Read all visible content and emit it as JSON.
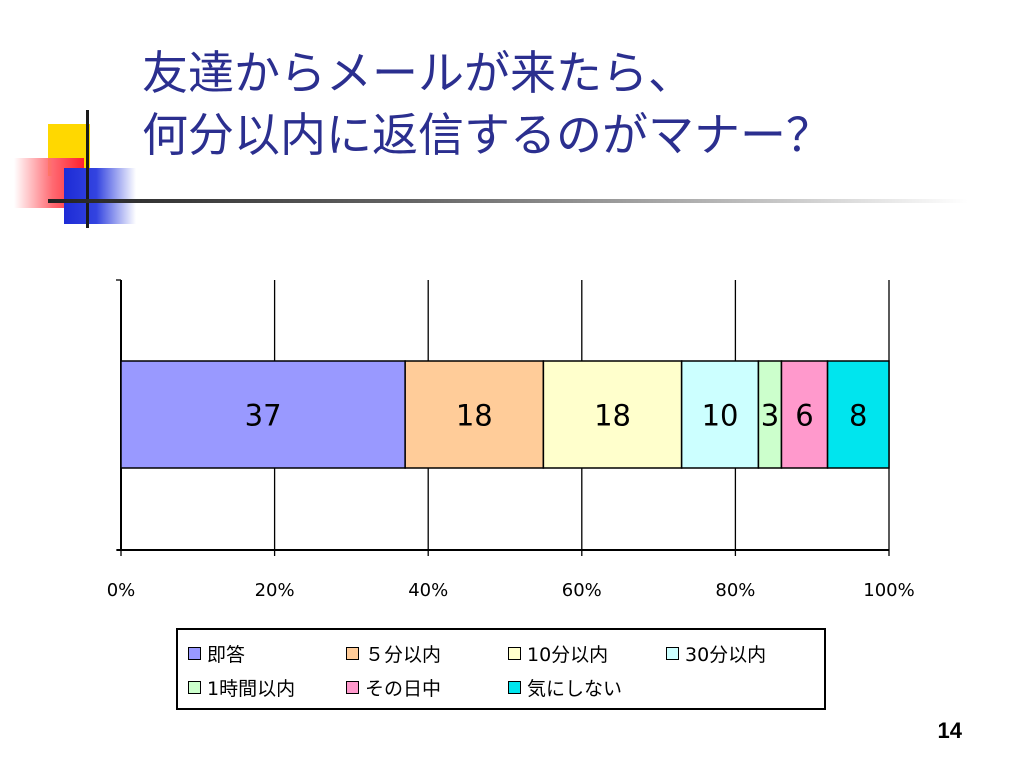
{
  "title": {
    "line1": "友達からメールが来たら、",
    "line2": "何分以内に返信するのがマナー？"
  },
  "chart_data": {
    "type": "bar",
    "orientation": "horizontal",
    "stacked": "percent",
    "title": "",
    "xlabel": "",
    "ylabel": "",
    "xlim": [
      0,
      100
    ],
    "x_ticks": [
      "0%",
      "20%",
      "40%",
      "60%",
      "80%",
      "100%"
    ],
    "grid": true,
    "legend_position": "bottom",
    "series": [
      {
        "name": "即答",
        "value": 37,
        "color": "#9999ff"
      },
      {
        "name": "５分以内",
        "value": 18,
        "color": "#ffcc99"
      },
      {
        "name": "10分以内",
        "value": 18,
        "color": "#ffffcc"
      },
      {
        "name": "30分以内",
        "value": 10,
        "color": "#ccffff"
      },
      {
        "name": "1時間以内",
        "value": 3,
        "color": "#ccffcc"
      },
      {
        "name": "その日中",
        "value": 6,
        "color": "#ff99cc"
      },
      {
        "name": "気にしない",
        "value": 8,
        "color": "#00e5ee"
      }
    ]
  },
  "page_number": "14"
}
